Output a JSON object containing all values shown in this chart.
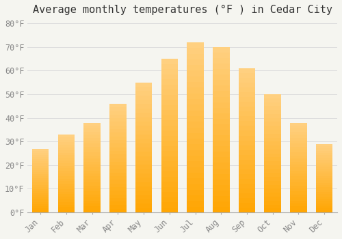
{
  "title": "Average monthly temperatures (°F ) in Cedar City",
  "months": [
    "Jan",
    "Feb",
    "Mar",
    "Apr",
    "May",
    "Jun",
    "Jul",
    "Aug",
    "Sep",
    "Oct",
    "Nov",
    "Dec"
  ],
  "values": [
    27,
    33,
    38,
    46,
    55,
    65,
    72,
    70,
    61,
    50,
    38,
    29
  ],
  "bar_color_top": "#FFD080",
  "bar_color_bottom": "#FFA500",
  "background_color": "#F5F5F0",
  "grid_color": "#DDDDDD",
  "tick_label_color": "#888888",
  "title_color": "#333333",
  "ylim": [
    0,
    82
  ],
  "yticks": [
    0,
    10,
    20,
    30,
    40,
    50,
    60,
    70,
    80
  ],
  "title_fontsize": 11,
  "tick_fontsize": 8.5
}
